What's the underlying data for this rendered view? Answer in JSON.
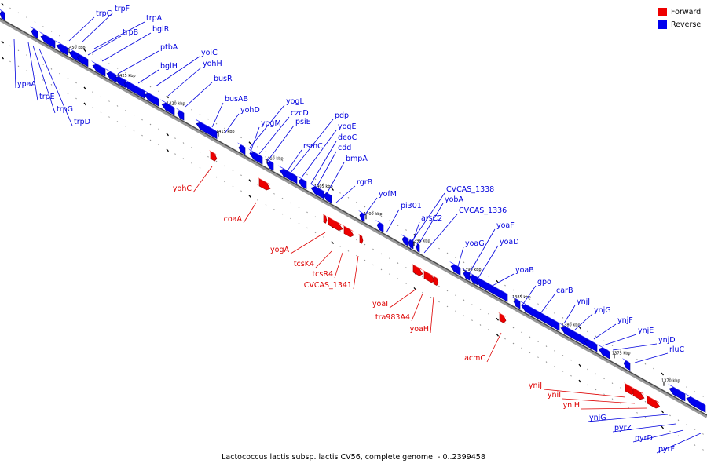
{
  "caption": "Lactococcus lactis subsp. lactis CV56, complete genome. - 0..2399458",
  "legend": {
    "forward": {
      "label": "Forward",
      "color": "#ee0000"
    },
    "reverse": {
      "label": "Reverse",
      "color": "#0000ee"
    }
  },
  "kbp_marks": [
    "1450 kbp",
    "1425 kbp",
    "1420 kbp",
    "1415 kbp",
    "1410 kbp",
    "1405 kbp",
    "1400 kbp",
    "1395 kbp",
    "1390 kbp",
    "1385 kbp",
    "1380 kbp",
    "1375 kbp",
    "1370 kbp"
  ],
  "reverse_genes": [
    "trpC",
    "trpF",
    "trpA",
    "trpB",
    "bglR",
    "ptbA",
    "yoiC",
    "bglH",
    "yohH",
    "busR",
    "busAB",
    "yohD",
    "yogL",
    "czcD",
    "yogM",
    "psiE",
    "pdp",
    "yogE",
    "rsmC",
    "deoC",
    "cdd",
    "bmpA",
    "rgrB",
    "yofM",
    "pi301",
    "CVCAS_1338",
    "yobA",
    "arsC2",
    "CVCAS_1336",
    "yoaF",
    "yoaG",
    "yoaD",
    "yoaB",
    "gpo",
    "carB",
    "ynjJ",
    "ynjG",
    "ynjF",
    "ynjE",
    "ynjD",
    "rluC",
    "ypaA",
    "trpE",
    "trpG",
    "trpD",
    "yniG",
    "pyrZ",
    "pyrD",
    "pyrF"
  ],
  "forward_genes": [
    "yohC",
    "coaA",
    "yogA",
    "tcsK4",
    "tcsR4",
    "CVCAS_1341",
    "yoaI",
    "tra983A4",
    "yoaH",
    "acmC",
    "yniJ",
    "yniI",
    "yniH"
  ]
}
